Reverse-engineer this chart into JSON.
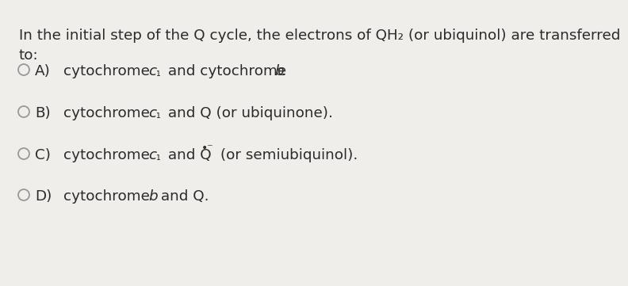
{
  "background_color": "#f0eeeb",
  "text_color": "#2a2a2a",
  "q_line1": "In the initial step of the Q cycle, the electrons of QH₂ (or ubiquinol) are transferred",
  "q_line2": "to:",
  "options": [
    {
      "label": "A)",
      "pre": "cytochrome ",
      "c_italic": "c",
      "sub": "₁",
      "mid": " and cytochrome ",
      "b_italic": "b",
      "post": ".",
      "has_radical": false
    },
    {
      "label": "B)",
      "pre": "cytochrome ",
      "c_italic": "c",
      "sub": "₁",
      "mid": " and Q (or ubiquinone).",
      "b_italic": "",
      "post": "",
      "has_radical": false
    },
    {
      "label": "C)",
      "pre": "cytochrome ",
      "c_italic": "c",
      "sub": "₁",
      "mid": " and Q",
      "b_italic": "",
      "post": " (or semiubiquinol).",
      "has_radical": true,
      "radical": "•⁻"
    },
    {
      "label": "D)",
      "pre": "cytochrome ",
      "c_italic": "",
      "sub": "",
      "mid": "",
      "b_italic": "b",
      "post": " and Q.",
      "has_radical": false
    }
  ],
  "circle_color": "#999999",
  "font_size": 13.2,
  "font_size_sub": 10.2,
  "font_size_radical": 10.0
}
